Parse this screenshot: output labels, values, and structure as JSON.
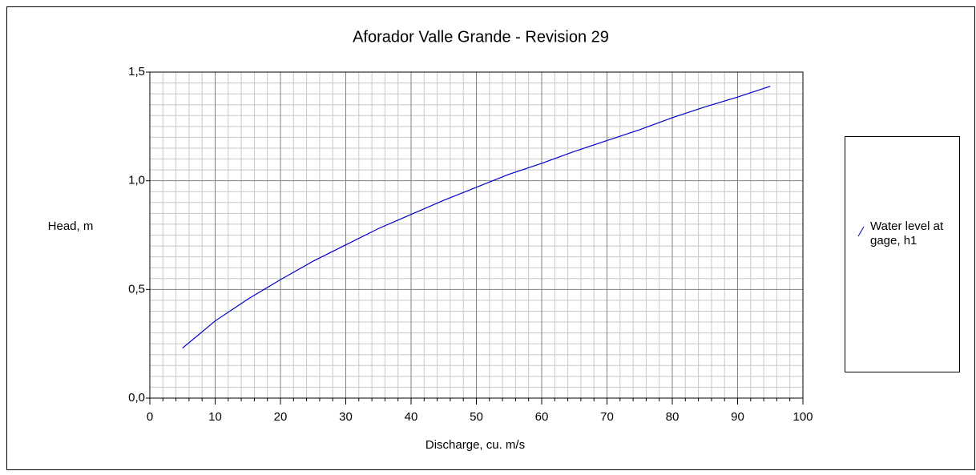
{
  "chart_data": {
    "type": "line",
    "title": "Aforador Valle Grande - Revision 29",
    "x_label": "Discharge, cu. m/s",
    "y_label": "Head, m",
    "x": [
      5,
      10,
      15,
      20,
      25,
      30,
      35,
      40,
      45,
      50,
      55,
      60,
      65,
      70,
      75,
      80,
      85,
      90,
      95
    ],
    "series": [
      {
        "name": "Water level at gage, h1",
        "color": "#0000cc",
        "values": [
          0.23,
          0.355,
          0.455,
          0.545,
          0.63,
          0.705,
          0.78,
          0.845,
          0.91,
          0.97,
          1.03,
          1.08,
          1.135,
          1.185,
          1.235,
          1.29,
          1.34,
          1.385,
          1.435
        ]
      }
    ],
    "xlim": [
      0,
      100
    ],
    "xticks": [
      0,
      10,
      20,
      30,
      40,
      50,
      60,
      70,
      80,
      90,
      100
    ],
    "ylim": [
      0,
      1.5
    ],
    "yticks": [
      {
        "value": 0,
        "label": "0,0"
      },
      {
        "value": 0.5,
        "label": "0,5"
      },
      {
        "value": 1.0,
        "label": "1,0"
      },
      {
        "value": 1.5,
        "label": "1,5"
      }
    ],
    "grid": true,
    "legend": "right"
  }
}
